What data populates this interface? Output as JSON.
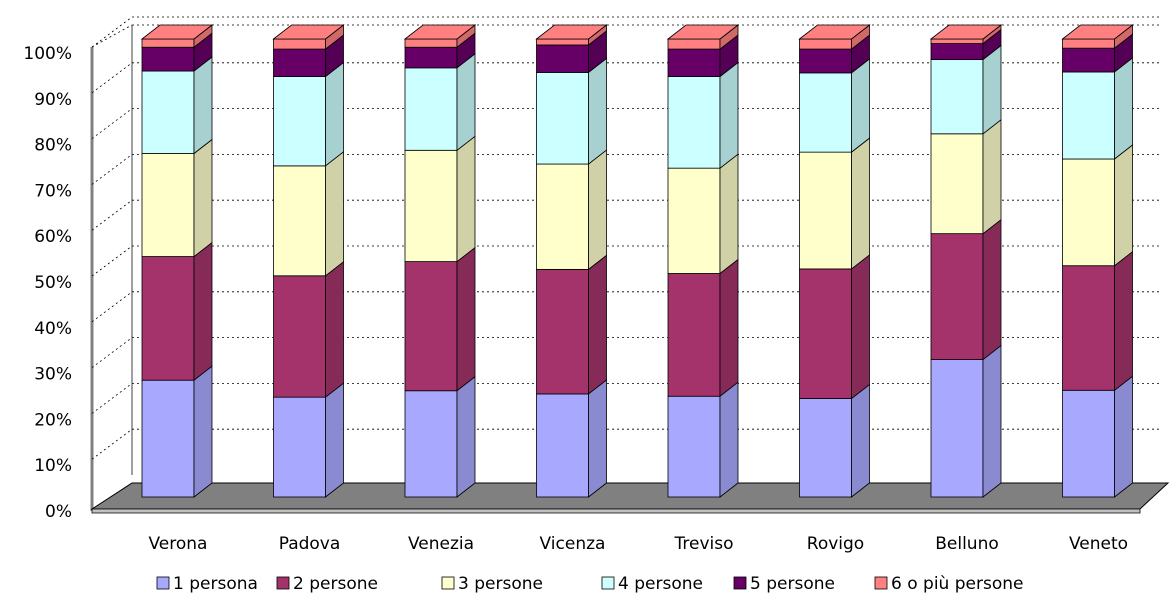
{
  "colors": {
    "series": [
      "#a8a8ff",
      "#a3336a",
      "#ffffcc",
      "#ccffff",
      "#660066",
      "#ff8080"
    ],
    "floor": "#808080",
    "grid": "#000000",
    "background": "#ffffff"
  },
  "chart_data": {
    "type": "bar",
    "stacked": true,
    "three_d": true,
    "categories": [
      "Verona",
      "Padova",
      "Venezia",
      "Vicenza",
      "Treviso",
      "Rovigo",
      "Belluno",
      "Veneto"
    ],
    "y_tick_labels": [
      "0%",
      "10%",
      "20%",
      "30%",
      "40%",
      "50%",
      "60%",
      "70%",
      "80%",
      "90%",
      "100%"
    ],
    "ylim": [
      0,
      100
    ],
    "grid": true,
    "legend_position": "bottom",
    "series": [
      {
        "name": "1 persona",
        "values": [
          25.5,
          21.8,
          23.2,
          22.5,
          22.0,
          21.5,
          30.0,
          23.3
        ]
      },
      {
        "name": "2 persone",
        "values": [
          27.0,
          26.5,
          28.2,
          27.2,
          26.8,
          28.3,
          27.5,
          27.2
        ]
      },
      {
        "name": "3 persone",
        "values": [
          22.5,
          24.0,
          24.3,
          23.0,
          23.0,
          25.5,
          21.8,
          23.3
        ]
      },
      {
        "name": "4 persone",
        "values": [
          18.0,
          19.5,
          18.0,
          20.0,
          20.0,
          17.3,
          16.2,
          19.0
        ]
      },
      {
        "name": "5 persone",
        "values": [
          5.2,
          6.0,
          4.5,
          6.0,
          6.0,
          5.2,
          3.5,
          5.2
        ]
      },
      {
        "name": "6 o più persone",
        "values": [
          1.8,
          2.2,
          1.8,
          1.3,
          2.2,
          2.2,
          1.0,
          2.0
        ]
      }
    ]
  }
}
